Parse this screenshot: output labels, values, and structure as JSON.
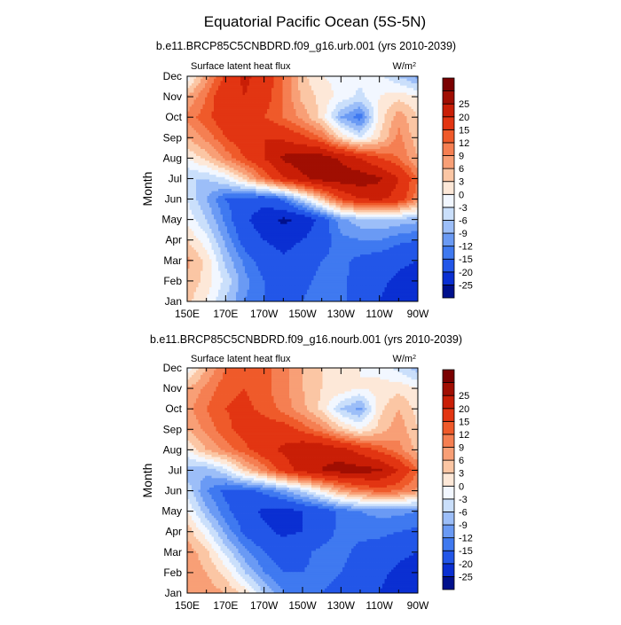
{
  "main_title": "Equatorial Pacific Ocean (5S-5N)",
  "colorbar": {
    "colors": [
      "#00108c",
      "#0a2fd2",
      "#2256e8",
      "#3f79f0",
      "#6a9af4",
      "#9cbef8",
      "#cadffb",
      "#f2f7ff",
      "#fde8d8",
      "#fbc6a4",
      "#f89f76",
      "#f57f52",
      "#ef5a2a",
      "#e23512",
      "#c91e06",
      "#a00e02",
      "#7a0000"
    ],
    "tick_labels": [
      "-25",
      "-20",
      "-15",
      "-12",
      "-9",
      "-6",
      "-3",
      "0",
      "3",
      "6",
      "9",
      "12",
      "15",
      "20",
      "25"
    ]
  },
  "chart_data": [
    {
      "type": "heatmap",
      "title": "b.e11.BRCP85C5CNBDRD.f09_g16.urb.001 (yrs 2010-2039)",
      "left_string": "Surface latent heat flux",
      "units_base": "W/m",
      "units_sup": "2",
      "ylabel": "Month",
      "x_ticks": [
        "150E",
        "170E",
        "170W",
        "150W",
        "130W",
        "110W",
        "90W"
      ],
      "y_ticks": [
        "Jan",
        "Feb",
        "Mar",
        "Apr",
        "May",
        "Jun",
        "Jul",
        "Aug",
        "Sep",
        "Oct",
        "Nov",
        "Dec"
      ],
      "contour_levels": [
        -25,
        -20,
        -15,
        -12,
        -9,
        -6,
        -3,
        0,
        3,
        6,
        9,
        12,
        15,
        20,
        25
      ],
      "x_lon": [
        150,
        160,
        170,
        180,
        190,
        200,
        210,
        220,
        230,
        240,
        250,
        260,
        270
      ],
      "months": [
        "Jan",
        "Feb",
        "Mar",
        "Apr",
        "May",
        "Jun",
        "Jul",
        "Aug",
        "Sep",
        "Oct",
        "Nov",
        "Dec"
      ],
      "z": [
        [
          4,
          0,
          -6,
          -12,
          -15,
          -16,
          -15,
          -13,
          -14,
          -18,
          -20,
          -22,
          -24
        ],
        [
          5,
          2,
          -4,
          -11,
          -15,
          -17,
          -16,
          -14,
          -14,
          -17,
          -19,
          -21,
          -22
        ],
        [
          7,
          2,
          -7,
          -13,
          -17,
          -19,
          -17,
          -15,
          -14,
          -16,
          -17,
          -19,
          -20
        ],
        [
          3,
          -2,
          -10,
          -17,
          -20,
          -22,
          -20,
          -17,
          -13,
          -12,
          -12,
          -14,
          -15
        ],
        [
          -1,
          -6,
          -13,
          -19,
          -23,
          -26,
          -24,
          -18,
          -10,
          -7,
          -6,
          -7,
          -8
        ],
        [
          -3,
          -9,
          -15,
          -17,
          -18,
          -14,
          -5,
          5,
          15,
          20,
          21,
          18,
          10
        ],
        [
          -6,
          -6,
          -3,
          4,
          12,
          19,
          24,
          27,
          28,
          28,
          26,
          20,
          12
        ],
        [
          0,
          4,
          10,
          15,
          20,
          26,
          28,
          28,
          24,
          20,
          15,
          12,
          6
        ],
        [
          6,
          10,
          15,
          18,
          20,
          19,
          16,
          12,
          3,
          -3,
          3,
          10,
          4
        ],
        [
          10,
          14,
          18,
          18,
          15,
          12,
          8,
          2,
          -9,
          -14,
          1,
          8,
          3
        ],
        [
          6,
          12,
          19,
          20,
          17,
          12,
          5,
          2,
          -1,
          -4,
          0,
          2,
          0
        ],
        [
          -2,
          8,
          16,
          21,
          18,
          12,
          4,
          0,
          -1,
          -2,
          -2,
          -6,
          -10
        ]
      ]
    },
    {
      "type": "heatmap",
      "title": "b.e11.BRCP85C5CNBDRD.f09_g16.nourb.001 (yrs 2010-2039)",
      "left_string": "Surface latent heat flux",
      "units_base": "W/m",
      "units_sup": "2",
      "ylabel": "Month",
      "x_ticks": [
        "150E",
        "170E",
        "170W",
        "150W",
        "130W",
        "110W",
        "90W"
      ],
      "y_ticks": [
        "Jan",
        "Feb",
        "Mar",
        "Apr",
        "May",
        "Jun",
        "Jul",
        "Aug",
        "Sep",
        "Oct",
        "Nov",
        "Dec"
      ],
      "contour_levels": [
        -25,
        -20,
        -15,
        -12,
        -9,
        -6,
        -3,
        0,
        3,
        6,
        9,
        12,
        15,
        20,
        25
      ],
      "x_lon": [
        150,
        160,
        170,
        180,
        190,
        200,
        210,
        220,
        230,
        240,
        250,
        260,
        270
      ],
      "months": [
        "Jan",
        "Feb",
        "Mar",
        "Apr",
        "May",
        "Jun",
        "Jul",
        "Aug",
        "Sep",
        "Oct",
        "Nov",
        "Dec"
      ],
      "z": [
        [
          6,
          8,
          6,
          2,
          -6,
          -12,
          -14,
          -15,
          -16,
          -18,
          -20,
          -22,
          -24
        ],
        [
          8,
          6,
          2,
          -6,
          -12,
          -15,
          -15,
          -14,
          -15,
          -17,
          -19,
          -21,
          -22
        ],
        [
          8,
          4,
          -4,
          -11,
          -15,
          -17,
          -16,
          -14,
          -14,
          -16,
          -17,
          -19,
          -20
        ],
        [
          5,
          -2,
          -10,
          -16,
          -19,
          -21,
          -20,
          -17,
          -14,
          -14,
          -14,
          -15,
          -16
        ],
        [
          0,
          -8,
          -14,
          -18,
          -21,
          -22,
          -20,
          -18,
          -14,
          -12,
          -11,
          -11,
          -12
        ],
        [
          -4,
          -12,
          -16,
          -16,
          -14,
          -10,
          -5,
          1,
          7,
          11,
          13,
          12,
          8
        ],
        [
          -8,
          -8,
          -4,
          4,
          10,
          17,
          22,
          25,
          27,
          27,
          26,
          20,
          12
        ],
        [
          0,
          6,
          10,
          14,
          18,
          21,
          24,
          24,
          22,
          18,
          14,
          10,
          5
        ],
        [
          6,
          10,
          14,
          17,
          17,
          17,
          14,
          10,
          4,
          0,
          4,
          8,
          3
        ],
        [
          8,
          12,
          15,
          16,
          14,
          11,
          7,
          2,
          -6,
          -10,
          2,
          6,
          2
        ],
        [
          6,
          10,
          14,
          15,
          13,
          10,
          6,
          3,
          2,
          0,
          1,
          2,
          0
        ],
        [
          -2,
          6,
          12,
          14,
          13,
          10,
          6,
          3,
          2,
          0,
          -1,
          -4,
          -8
        ]
      ]
    }
  ]
}
